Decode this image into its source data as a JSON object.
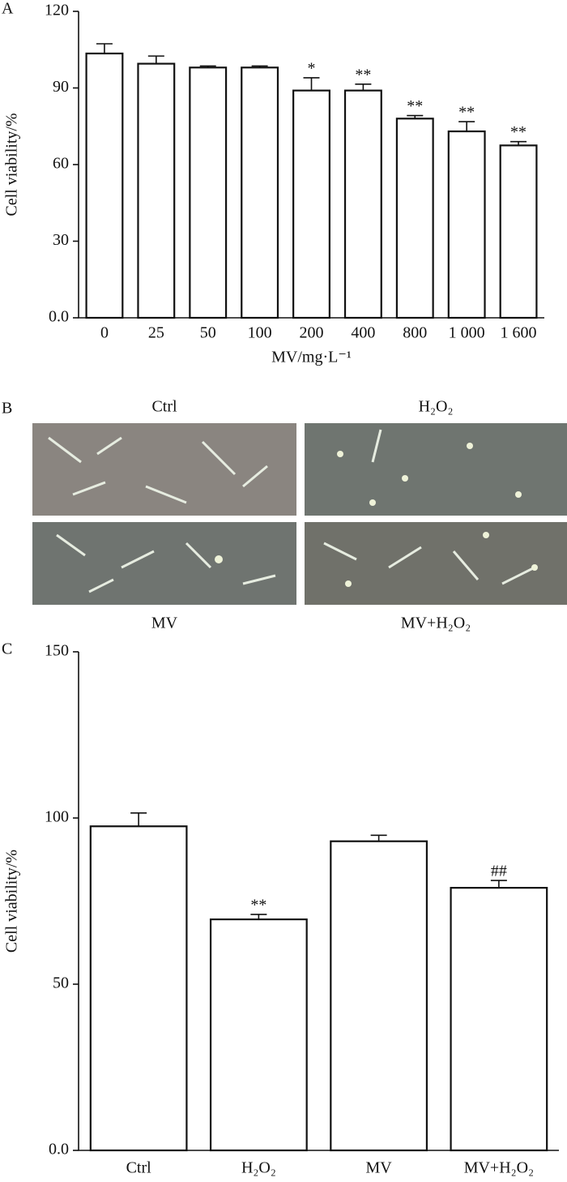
{
  "chart_data": [
    {
      "type": "bar",
      "panel": "A",
      "y_label": "Cell viability/%",
      "x_label": "MV/mg·L⁻¹",
      "categories": [
        "0",
        "25",
        "50",
        "100",
        "200",
        "400",
        "800",
        "1 000",
        "1 600"
      ],
      "values": [
        103.5,
        99.5,
        98,
        98,
        89,
        89,
        78,
        73,
        67.5
      ],
      "errors": [
        3.8,
        3,
        0.6,
        0.6,
        5,
        2.5,
        1.2,
        3.8,
        1.5
      ],
      "significance": [
        null,
        null,
        null,
        null,
        "*",
        "**",
        "**",
        "**",
        "**"
      ],
      "color": "#ffffff",
      "ylim": [
        0,
        120
      ],
      "yticks": [
        {
          "value": 0,
          "label": "0.0"
        },
        30,
        60,
        90,
        120
      ]
    },
    {
      "type": "bar",
      "panel": "C",
      "y_label": "Cell viability/%",
      "categories": [
        "Ctrl",
        "H₂O₂",
        "MV",
        "MV+H₂O₂"
      ],
      "values": [
        97.5,
        69.5,
        93,
        79
      ],
      "errors": [
        4,
        1.5,
        1.8,
        2.2
      ],
      "significance": [
        null,
        "**",
        null,
        "##"
      ],
      "color": "#ffffff",
      "ylim": [
        0,
        150
      ],
      "yticks": [
        {
          "value": 0,
          "label": "0.0"
        },
        50,
        100,
        150
      ]
    }
  ],
  "panel_b": {
    "panel": "B",
    "labels": [
      "Ctrl",
      "H₂O₂",
      "MV",
      "MV+H₂O₂"
    ]
  }
}
